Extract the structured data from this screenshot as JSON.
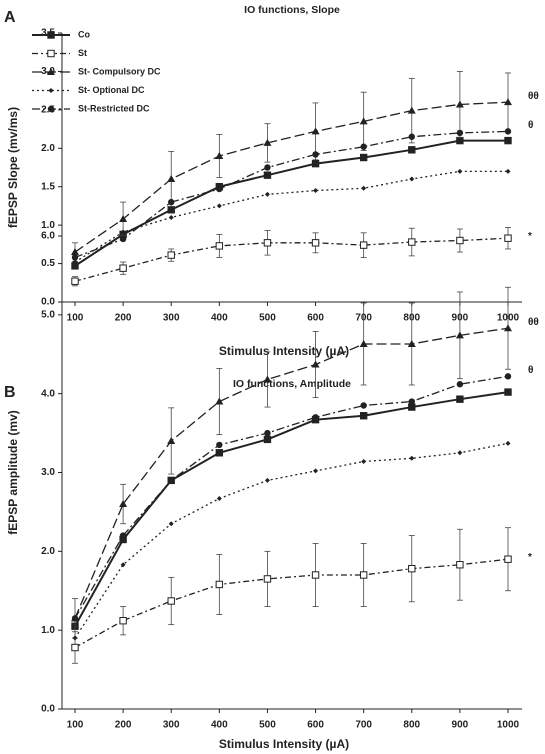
{
  "chart_data": [
    {
      "type": "line",
      "panel": "A",
      "title": "IO functions, Slope",
      "x_label": "Stimulus Intensity (µA)",
      "y_label": "fEPSP Slope (mv/ms)",
      "categories": [
        "100",
        "200",
        "300",
        "400",
        "500",
        "600",
        "700",
        "800",
        "900",
        "1000"
      ],
      "ylim": [
        0,
        3.5
      ],
      "yticks": [
        {
          "value": 0,
          "label": "0.0"
        },
        0.5,
        {
          "value": 1,
          "label": "1.0"
        },
        1.5,
        {
          "value": 2,
          "label": "2.0"
        },
        2.5,
        {
          "value": 3,
          "label": "3.0"
        },
        3.5
      ],
      "legend": true,
      "annotations": [
        "θθ",
        "θ",
        "*"
      ],
      "series": [
        {
          "name": "Co",
          "color": "#222",
          "marker": "square",
          "dash": "none",
          "values": [
            0.47,
            0.88,
            1.2,
            1.5,
            1.65,
            1.8,
            1.88,
            1.98,
            2.1,
            2.1
          ]
        },
        {
          "name": "St",
          "color": "#222",
          "marker": "open-square",
          "dash": "6 3 2 3",
          "values": [
            0.27,
            0.44,
            0.61,
            0.73,
            0.77,
            0.77,
            0.74,
            0.78,
            0.8,
            0.83
          ],
          "errors": [
            0.06,
            0.08,
            0.08,
            0.15,
            0.16,
            0.13,
            0.16,
            0.18,
            0.15,
            0.14
          ]
        },
        {
          "name": "St- Compulsory DC",
          "color": "#222",
          "marker": "triangle",
          "dash": "10 4",
          "values": [
            0.65,
            1.08,
            1.6,
            1.9,
            2.07,
            2.22,
            2.35,
            2.49,
            2.57,
            2.6
          ],
          "errors": [
            0.12,
            0.22,
            0.36,
            0.28,
            0.25,
            0.37,
            0.38,
            0.42,
            0.43,
            0.38
          ]
        },
        {
          "name": "St- Optional DC",
          "color": "#222",
          "marker": "diamond",
          "dash": "2 3",
          "values": [
            0.52,
            0.91,
            1.1,
            1.25,
            1.4,
            1.45,
            1.48,
            1.6,
            1.7,
            1.7
          ]
        },
        {
          "name": "St-Restricted DC",
          "color": "#222",
          "marker": "circle",
          "dash": "8 3 2 3",
          "values": [
            0.58,
            0.82,
            1.3,
            1.47,
            1.75,
            1.92,
            2.02,
            2.15,
            2.2,
            2.22
          ]
        }
      ]
    },
    {
      "type": "line",
      "panel": "B",
      "title": "IO functions, Amplitude",
      "x_label": "Stimulus Intensity (µA)",
      "y_label": "fEPSP amplitude (mv)",
      "categories": [
        "100",
        "200",
        "300",
        "400",
        "500",
        "600",
        "700",
        "800",
        "900",
        "1000"
      ],
      "ylim": [
        0,
        6
      ],
      "yticks": [
        {
          "value": 0,
          "label": "0.0"
        },
        {
          "value": 1,
          "label": "1.0"
        },
        {
          "value": 2,
          "label": "2.0"
        },
        {
          "value": 3,
          "label": "3.0"
        },
        {
          "value": 4,
          "label": "4.0"
        },
        {
          "value": 5,
          "label": "5.0"
        },
        {
          "value": 6,
          "label": "6.0"
        }
      ],
      "legend": false,
      "annotations": [
        "θθ",
        "θ",
        "*"
      ],
      "series": [
        {
          "color": "#222",
          "marker": "square",
          "dash": "none",
          "values": [
            1.05,
            2.15,
            2.9,
            3.25,
            3.42,
            3.67,
            3.72,
            3.83,
            3.93,
            4.02
          ]
        },
        {
          "color": "#222",
          "marker": "open-square",
          "dash": "6 3 2 3",
          "values": [
            0.78,
            1.12,
            1.37,
            1.58,
            1.65,
            1.7,
            1.7,
            1.78,
            1.83,
            1.9
          ],
          "errors": [
            0.2,
            0.18,
            0.3,
            0.38,
            0.35,
            0.4,
            0.4,
            0.42,
            0.45,
            0.4
          ]
        },
        {
          "color": "#222",
          "marker": "triangle",
          "dash": "10 4",
          "values": [
            1.15,
            2.6,
            3.4,
            3.9,
            4.18,
            4.37,
            4.63,
            4.63,
            4.74,
            4.83
          ],
          "errors": [
            0.25,
            0.25,
            0.42,
            0.42,
            0.35,
            0.42,
            0.52,
            0.52,
            0.55,
            0.52
          ]
        },
        {
          "color": "#222",
          "marker": "diamond",
          "dash": "2 3",
          "values": [
            0.9,
            1.83,
            2.35,
            2.67,
            2.9,
            3.02,
            3.14,
            3.18,
            3.25,
            3.37
          ]
        },
        {
          "color": "#222",
          "marker": "circle",
          "dash": "8 3 2 3",
          "values": [
            1.15,
            2.2,
            2.9,
            3.35,
            3.5,
            3.7,
            3.85,
            3.9,
            4.12,
            4.22
          ]
        }
      ]
    }
  ]
}
